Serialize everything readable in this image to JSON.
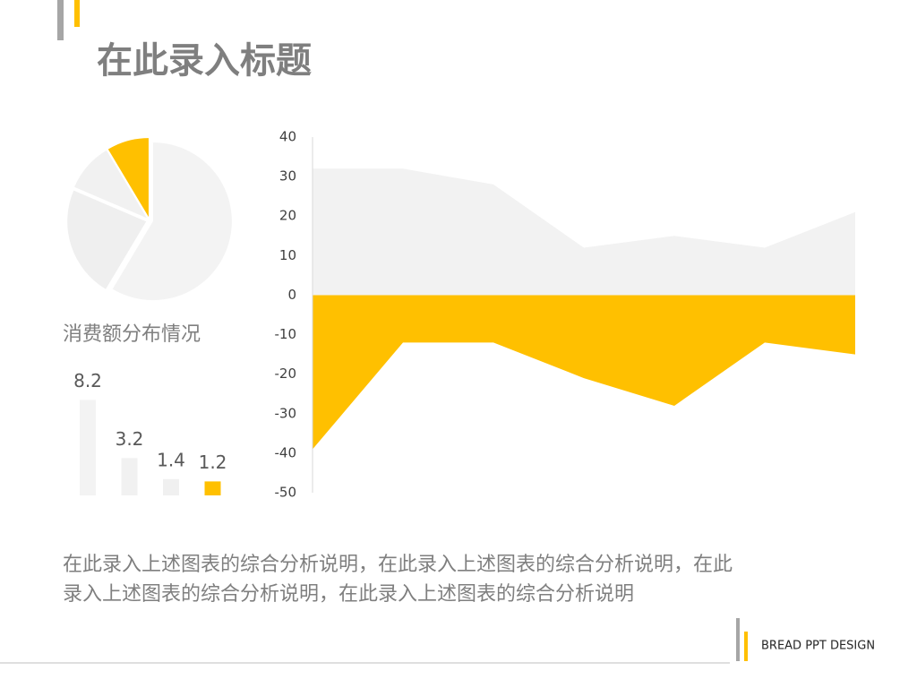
{
  "header": {
    "title": "在此录入标题"
  },
  "chart_data": [
    {
      "type": "pie",
      "title": "消费额分布情况",
      "values": [
        8.2,
        3.2,
        1.4,
        1.2
      ],
      "colors": [
        "#f3f3f3",
        "#efefef",
        "#f1f1f1",
        "#ffc000"
      ]
    },
    {
      "type": "bar",
      "categories": [
        null,
        null,
        null,
        null
      ],
      "values": [
        8.2,
        3.2,
        1.4,
        1.2
      ],
      "colors": [
        "#f3f3f3",
        "#f1f1f1",
        "#f0f0f0",
        "#ffc000"
      ]
    },
    {
      "type": "area",
      "categories": [
        null,
        null,
        null,
        null,
        null,
        null,
        null
      ],
      "series": [
        {
          "color": "#f2f2f2",
          "values": [
            32,
            32,
            28,
            12,
            15,
            12,
            21
          ]
        },
        {
          "color": "#ffc000",
          "values": [
            -39,
            -12,
            -12,
            -21,
            -28,
            -12,
            -15
          ]
        }
      ],
      "ylim": [
        -50,
        40
      ],
      "yticks": [
        -50,
        -40,
        -30,
        -20,
        -10,
        0,
        10,
        20,
        30,
        40
      ]
    }
  ],
  "description": [
    "在此录入上述图表的综合分析说明，在此录入上述图表的综合分析说明，在此",
    "录入上述图表的综合分析说明，在此录入上述图表的综合分析说明"
  ],
  "footer": {
    "brand": "BREAD PPT DESIGN"
  }
}
